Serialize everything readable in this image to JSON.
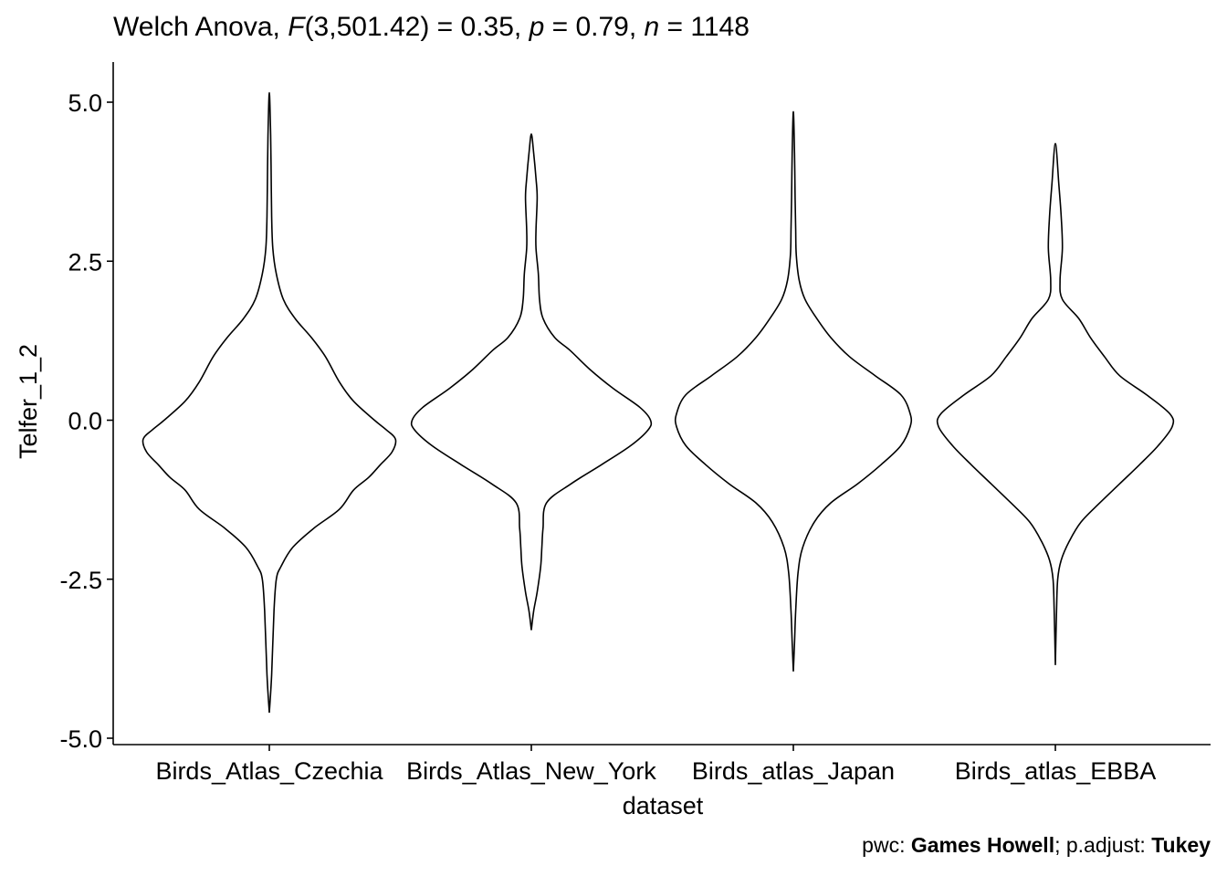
{
  "chart_data": {
    "type": "violin",
    "subtitle_parts": [
      {
        "text": "Welch Anova, ",
        "style": "normal"
      },
      {
        "text": "F",
        "style": "italic"
      },
      {
        "text": "(3,501.42) = 0.35, ",
        "style": "normal"
      },
      {
        "text": "p",
        "style": "italic"
      },
      {
        "text": " = 0.79, ",
        "style": "normal"
      },
      {
        "text": "n",
        "style": "italic"
      },
      {
        "text": " = 1148",
        "style": "normal"
      }
    ],
    "caption_parts": [
      {
        "text": "pwc: ",
        "style": "normal"
      },
      {
        "text": "Games Howell",
        "style": "bold"
      },
      {
        "text": "; p.adjust: ",
        "style": "normal"
      },
      {
        "text": "Tukey",
        "style": "bold"
      }
    ],
    "xlabel": "dataset",
    "ylabel": "Telfer_1_2",
    "categories": [
      "Birds_Atlas_Czechia",
      "Birds_Atlas_New_York",
      "Birds_atlas_Japan",
      "Birds_atlas_EBBA"
    ],
    "ylim": [
      -5.0,
      5.0
    ],
    "y_ticks": [
      5.0,
      2.5,
      0.0,
      -2.5,
      -5.0
    ],
    "y_tick_labels": [
      "5.0",
      "2.5",
      "0.0",
      "-2.5",
      "-5.0"
    ],
    "violins": [
      {
        "category": "Birds_Atlas_Czechia",
        "y_min": -4.6,
        "y_max": 5.15,
        "profile": [
          [
            -4.6,
            0.0
          ],
          [
            -4.0,
            0.02
          ],
          [
            -3.0,
            0.04
          ],
          [
            -2.5,
            0.06
          ],
          [
            -2.3,
            0.1
          ],
          [
            -2.0,
            0.2
          ],
          [
            -1.7,
            0.38
          ],
          [
            -1.4,
            0.6
          ],
          [
            -1.1,
            0.72
          ],
          [
            -0.9,
            0.85
          ],
          [
            -0.7,
            0.95
          ],
          [
            -0.5,
            1.05
          ],
          [
            -0.3,
            1.08
          ],
          [
            -0.15,
            1.0
          ],
          [
            0.0,
            0.9
          ],
          [
            0.3,
            0.72
          ],
          [
            0.6,
            0.6
          ],
          [
            1.0,
            0.48
          ],
          [
            1.3,
            0.36
          ],
          [
            1.6,
            0.22
          ],
          [
            1.9,
            0.12
          ],
          [
            2.3,
            0.06
          ],
          [
            2.7,
            0.03
          ],
          [
            3.2,
            0.02
          ],
          [
            4.0,
            0.015
          ],
          [
            4.6,
            0.01
          ],
          [
            5.15,
            0.0
          ]
        ]
      },
      {
        "category": "Birds_Atlas_New_York",
        "y_min": -3.3,
        "y_max": 4.5,
        "profile": [
          [
            -3.3,
            0.0
          ],
          [
            -3.0,
            0.02
          ],
          [
            -2.7,
            0.05
          ],
          [
            -2.3,
            0.08
          ],
          [
            -2.0,
            0.09
          ],
          [
            -1.7,
            0.1
          ],
          [
            -1.3,
            0.13
          ],
          [
            -1.0,
            0.34
          ],
          [
            -0.7,
            0.6
          ],
          [
            -0.4,
            0.85
          ],
          [
            -0.15,
            1.0
          ],
          [
            0.0,
            1.02
          ],
          [
            0.2,
            0.93
          ],
          [
            0.5,
            0.7
          ],
          [
            0.8,
            0.5
          ],
          [
            1.1,
            0.33
          ],
          [
            1.3,
            0.2
          ],
          [
            1.6,
            0.1
          ],
          [
            1.9,
            0.07
          ],
          [
            2.3,
            0.06
          ],
          [
            2.7,
            0.04
          ],
          [
            3.0,
            0.04
          ],
          [
            3.5,
            0.05
          ],
          [
            3.8,
            0.04
          ],
          [
            4.2,
            0.02
          ],
          [
            4.5,
            0.0
          ]
        ]
      },
      {
        "category": "Birds_atlas_Japan",
        "y_min": -3.95,
        "y_max": 4.85,
        "profile": [
          [
            -3.95,
            0.0
          ],
          [
            -3.5,
            0.01
          ],
          [
            -3.0,
            0.02
          ],
          [
            -2.4,
            0.04
          ],
          [
            -2.0,
            0.08
          ],
          [
            -1.6,
            0.18
          ],
          [
            -1.3,
            0.32
          ],
          [
            -1.0,
            0.55
          ],
          [
            -0.7,
            0.75
          ],
          [
            -0.4,
            0.92
          ],
          [
            -0.1,
            1.0
          ],
          [
            0.1,
            1.0
          ],
          [
            0.4,
            0.92
          ],
          [
            0.7,
            0.7
          ],
          [
            1.0,
            0.48
          ],
          [
            1.3,
            0.32
          ],
          [
            1.6,
            0.2
          ],
          [
            1.9,
            0.1
          ],
          [
            2.2,
            0.05
          ],
          [
            2.6,
            0.025
          ],
          [
            3.0,
            0.02
          ],
          [
            3.5,
            0.015
          ],
          [
            4.2,
            0.01
          ],
          [
            4.85,
            0.0
          ]
        ]
      },
      {
        "category": "Birds_atlas_EBBA",
        "y_min": -3.85,
        "y_max": 4.35,
        "profile": [
          [
            -3.85,
            0.0
          ],
          [
            -3.0,
            0.01
          ],
          [
            -2.5,
            0.02
          ],
          [
            -2.2,
            0.05
          ],
          [
            -1.9,
            0.12
          ],
          [
            -1.6,
            0.22
          ],
          [
            -1.3,
            0.38
          ],
          [
            -1.0,
            0.55
          ],
          [
            -0.7,
            0.72
          ],
          [
            -0.4,
            0.88
          ],
          [
            -0.1,
            1.0
          ],
          [
            0.1,
            0.98
          ],
          [
            0.4,
            0.78
          ],
          [
            0.7,
            0.55
          ],
          [
            1.0,
            0.42
          ],
          [
            1.3,
            0.3
          ],
          [
            1.6,
            0.2
          ],
          [
            1.9,
            0.06
          ],
          [
            2.2,
            0.04
          ],
          [
            2.7,
            0.06
          ],
          [
            3.2,
            0.05
          ],
          [
            3.7,
            0.03
          ],
          [
            4.35,
            0.0
          ]
        ]
      }
    ]
  }
}
